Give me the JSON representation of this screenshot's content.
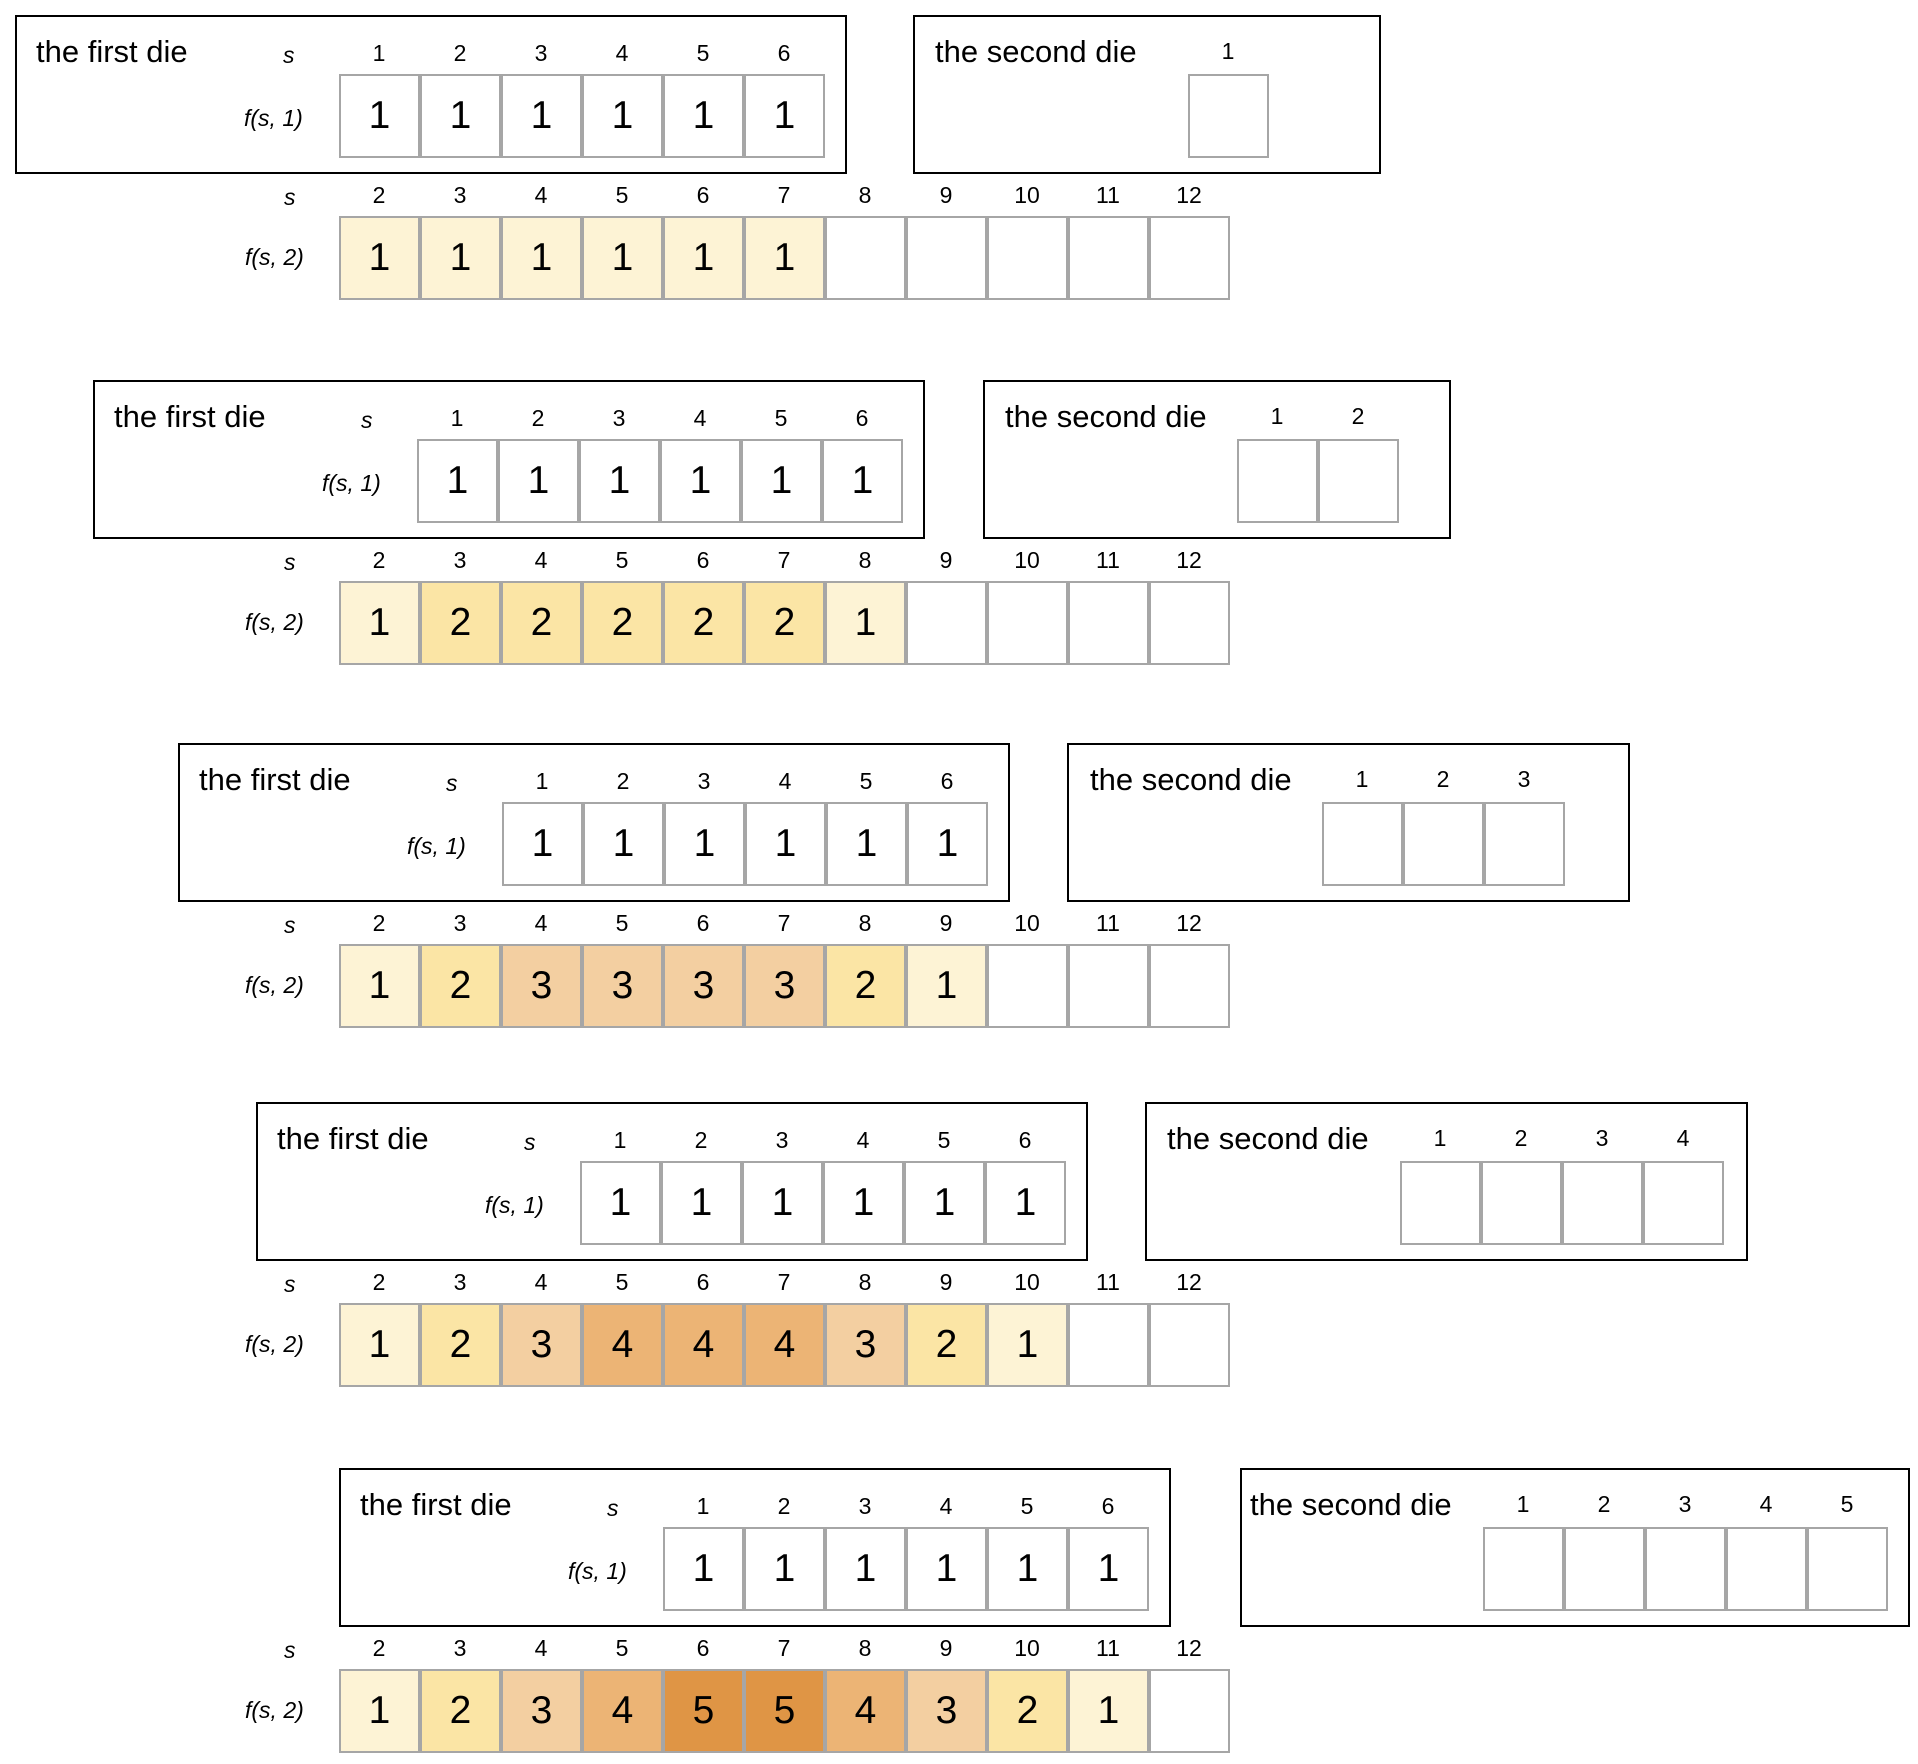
{
  "labels": {
    "first_die": "the first die",
    "second_die": "the second die",
    "s": "s",
    "f1": "f(s, 1)",
    "f2": "f(s, 2)"
  },
  "palette": {
    "1": "#fdf3d5",
    "2": "#fbe5a5",
    "3": "#f3cfa1",
    "4": "#ecb475",
    "5": "#df9545",
    "empty": "#ffffff",
    "cell_border": "#a6a6a6",
    "box_border": "#000000"
  },
  "stages": [
    {
      "first_die": {
        "s": [
          1,
          2,
          3,
          4,
          5,
          6
        ],
        "f": [
          1,
          1,
          1,
          1,
          1,
          1
        ]
      },
      "second_die": {
        "s": [
          1
        ]
      },
      "sum": {
        "s": [
          2,
          3,
          4,
          5,
          6,
          7,
          8,
          9,
          10,
          11,
          12
        ],
        "f": [
          1,
          1,
          1,
          1,
          1,
          1,
          null,
          null,
          null,
          null,
          null
        ]
      }
    },
    {
      "first_die": {
        "s": [
          1,
          2,
          3,
          4,
          5,
          6
        ],
        "f": [
          1,
          1,
          1,
          1,
          1,
          1
        ]
      },
      "second_die": {
        "s": [
          1,
          2
        ]
      },
      "sum": {
        "s": [
          2,
          3,
          4,
          5,
          6,
          7,
          8,
          9,
          10,
          11,
          12
        ],
        "f": [
          1,
          2,
          2,
          2,
          2,
          2,
          1,
          null,
          null,
          null,
          null
        ]
      }
    },
    {
      "first_die": {
        "s": [
          1,
          2,
          3,
          4,
          5,
          6
        ],
        "f": [
          1,
          1,
          1,
          1,
          1,
          1
        ]
      },
      "second_die": {
        "s": [
          1,
          2,
          3
        ]
      },
      "sum": {
        "s": [
          2,
          3,
          4,
          5,
          6,
          7,
          8,
          9,
          10,
          11,
          12
        ],
        "f": [
          1,
          2,
          3,
          3,
          3,
          3,
          2,
          1,
          null,
          null,
          null
        ]
      }
    },
    {
      "first_die": {
        "s": [
          1,
          2,
          3,
          4,
          5,
          6
        ],
        "f": [
          1,
          1,
          1,
          1,
          1,
          1
        ]
      },
      "second_die": {
        "s": [
          1,
          2,
          3,
          4
        ]
      },
      "sum": {
        "s": [
          2,
          3,
          4,
          5,
          6,
          7,
          8,
          9,
          10,
          11,
          12
        ],
        "f": [
          1,
          2,
          3,
          4,
          4,
          4,
          3,
          2,
          1,
          null,
          null
        ]
      }
    },
    {
      "first_die": {
        "s": [
          1,
          2,
          3,
          4,
          5,
          6
        ],
        "f": [
          1,
          1,
          1,
          1,
          1,
          1
        ]
      },
      "second_die": {
        "s": [
          1,
          2,
          3,
          4,
          5
        ]
      },
      "sum": {
        "s": [
          2,
          3,
          4,
          5,
          6,
          7,
          8,
          9,
          10,
          11,
          12
        ],
        "f": [
          1,
          2,
          3,
          4,
          5,
          5,
          4,
          3,
          2,
          1,
          null
        ]
      }
    }
  ]
}
